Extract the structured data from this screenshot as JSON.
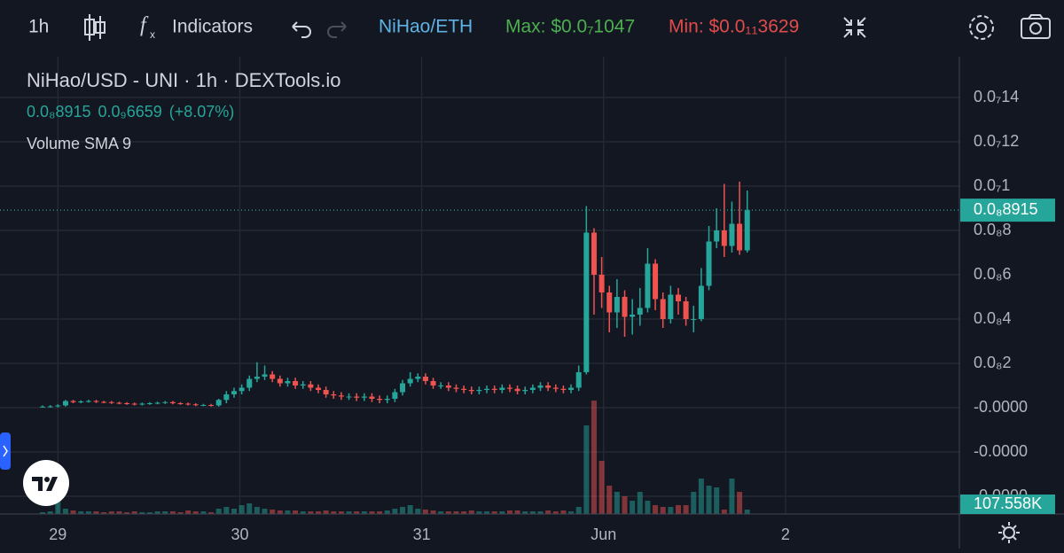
{
  "toolbar": {
    "interval": "1h",
    "indicators": "Indicators",
    "pair": "NiHao/ETH",
    "max": "Max: $0.0₇1047",
    "min": "Min: $0.0₁₁3629"
  },
  "chart_data": {
    "type": "candlestick",
    "title": "NiHao/USD - UNI · 1h · DEXTools.io",
    "legend_values": [
      "0.0₈8915",
      "0.0₉6659",
      "(+8.07%)"
    ],
    "indicator": "Volume SMA 9",
    "up_color": "#26a69a",
    "down_color": "#ef5350",
    "grid": true,
    "open": [
      5e-11,
      5e-11,
      6e-11,
      1e-10,
      3e-10,
      2.5e-10,
      2.8e-10,
      3e-10,
      2.6e-10,
      2.5e-10,
      2.2e-10,
      2e-10,
      1.8e-10,
      1.5e-10,
      1.8e-10,
      2e-10,
      2.2e-10,
      2.5e-10,
      2e-10,
      1.8e-10,
      1.5e-10,
      1.2e-10,
      1.2e-10,
      1e-10,
      3.5e-10,
      6e-10,
      7.5e-10,
      9e-10,
      1.3e-09,
      1.4e-09,
      1.5e-09,
      1.3e-09,
      1.1e-09,
      1.2e-09,
      1e-09,
      1.05e-09,
      9e-10,
      8e-10,
      6e-10,
      5.5e-10,
      5e-10,
      5e-10,
      4.5e-10,
      5e-10,
      4e-10,
      3.5e-10,
      4e-10,
      7e-10,
      1.1e-09,
      1.3e-09,
      1.4e-09,
      1.2e-09,
      1e-09,
      1e-09,
      9e-10,
      8.5e-10,
      8e-10,
      7.5e-10,
      8e-10,
      8.5e-10,
      8e-10,
      9e-10,
      8.5e-10,
      7.5e-10,
      8e-10,
      9e-10,
      1e-09,
      9e-10,
      8.5e-10,
      8e-10,
      9e-10,
      1.6e-09,
      7.9e-09,
      6e-09,
      5.2e-09,
      4.3e-09,
      5e-09,
      4.1e-09,
      4.2e-09,
      4.5e-09,
      6.5e-09,
      4.9e-09,
      4e-09,
      5.1e-09,
      4.8e-09,
      4e-09,
      4e-09,
      5.5e-09,
      7.5e-09,
      8e-09,
      7.3e-09,
      8.3e-09,
      7.1e-09
    ],
    "high": [
      1e-10,
      1.1e-10,
      1.5e-10,
      3.5e-10,
      3.5e-10,
      3.3e-10,
      3.5e-10,
      3.5e-10,
      3.1e-10,
      3e-10,
      2.7e-10,
      2.5e-10,
      2.3e-10,
      2.3e-10,
      2.5e-10,
      2.7e-10,
      3e-10,
      3e-10,
      2.5e-10,
      2.3e-10,
      2e-10,
      1.7e-10,
      1.7e-10,
      4e-10,
      7.5e-10,
      9e-10,
      1.05e-09,
      1.45e-09,
      2.05e-09,
      1.9e-09,
      1.65e-09,
      1.45e-09,
      1.35e-09,
      1.35e-09,
      1.2e-09,
      1.2e-09,
      1.05e-09,
      9.5e-10,
      7.5e-10,
      7e-10,
      6.5e-10,
      6.5e-10,
      6.5e-10,
      6.5e-10,
      5.5e-10,
      5.5e-10,
      8.5e-10,
      1.25e-09,
      1.6e-09,
      1.55e-09,
      1.55e-09,
      1.35e-09,
      1.15e-09,
      1.15e-09,
      1.05e-09,
      1e-09,
      9.5e-10,
      9.5e-10,
      1e-09,
      1e-09,
      1.05e-09,
      1.05e-09,
      1e-09,
      9.5e-10,
      1.05e-09,
      1.15e-09,
      1.15e-09,
      1.05e-09,
      1e-09,
      1.05e-09,
      1.9e-09,
      9.1e-09,
      8.1e-09,
      6.8e-09,
      5.5e-09,
      5.8e-09,
      5.3e-09,
      4.9e-09,
      5.4e-09,
      7.2e-09,
      6.7e-09,
      5.2e-09,
      5.5e-09,
      5.4e-09,
      5e-09,
      4.6e-09,
      6.3e-09,
      8.2e-09,
      9e-09,
      1.01e-08,
      9.3e-09,
      1.02e-08,
      9.8e-09
    ],
    "low": [
      0,
      0,
      1e-11,
      5e-11,
      2e-10,
      2e-10,
      2.3e-10,
      2.1e-10,
      2e-10,
      1.7e-10,
      1.5e-10,
      1.3e-10,
      1e-10,
      1e-10,
      1.3e-10,
      1.5e-10,
      1.7e-10,
      1.5e-10,
      1.3e-10,
      1e-10,
      7e-11,
      7e-11,
      5e-11,
      5e-11,
      2e-10,
      4.5e-10,
      6e-10,
      7.5e-10,
      1.15e-09,
      1.25e-09,
      1.15e-09,
      9.5e-10,
      9.5e-10,
      8.5e-10,
      8.5e-10,
      7.5e-10,
      6.5e-10,
      4.5e-10,
      4e-10,
      3.5e-10,
      3.5e-10,
      3e-10,
      3e-10,
      2.5e-10,
      2e-10,
      2e-10,
      2.5e-10,
      5.5e-10,
      9.5e-10,
      1.15e-09,
      1.05e-09,
      8.5e-10,
      8.5e-10,
      7.5e-10,
      7e-10,
      6.5e-10,
      6e-10,
      6e-10,
      6.5e-10,
      6.5e-10,
      6.5e-10,
      7e-10,
      6e-10,
      6e-10,
      6.5e-10,
      7.5e-10,
      7.5e-10,
      7e-10,
      6.5e-10,
      6.5e-10,
      7.5e-10,
      1.5e-09,
      4.2e-09,
      4.5e-09,
      3.4e-09,
      3.6e-09,
      3.2e-09,
      3.3e-09,
      3.7e-09,
      4.3e-09,
      4.4e-09,
      3.6e-09,
      3.8e-09,
      4.2e-09,
      3.7e-09,
      3.4e-09,
      3.9e-09,
      5.3e-09,
      7.2e-09,
      6.8e-09,
      7e-09,
      6.9e-09,
      7e-09
    ],
    "close": [
      5e-11,
      6e-11,
      1e-10,
      3e-10,
      2.5e-10,
      2.8e-10,
      3e-10,
      2.6e-10,
      2.5e-10,
      2.2e-10,
      2e-10,
      1.8e-10,
      1.5e-10,
      1.8e-10,
      2e-10,
      2.2e-10,
      2.5e-10,
      2e-10,
      1.8e-10,
      1.5e-10,
      1.2e-10,
      1.2e-10,
      1e-10,
      3.5e-10,
      6e-10,
      7.5e-10,
      9e-10,
      1.3e-09,
      1.4e-09,
      1.5e-09,
      1.3e-09,
      1.1e-09,
      1.2e-09,
      1e-09,
      1.05e-09,
      9e-10,
      8e-10,
      6e-10,
      5.5e-10,
      5e-10,
      5e-10,
      4.5e-10,
      5e-10,
      4e-10,
      3.5e-10,
      4e-10,
      7e-10,
      1.1e-09,
      1.3e-09,
      1.4e-09,
      1.2e-09,
      1e-09,
      1e-09,
      9e-10,
      8.5e-10,
      8e-10,
      7.5e-10,
      8e-10,
      8.5e-10,
      8e-10,
      9e-10,
      8.5e-10,
      7.5e-10,
      8e-10,
      9e-10,
      1e-09,
      9e-10,
      8.5e-10,
      8e-10,
      9e-10,
      1.6e-09,
      7.9e-09,
      6e-09,
      5.2e-09,
      4.3e-09,
      5e-09,
      4.1e-09,
      4.2e-09,
      4.5e-09,
      6.5e-09,
      4.9e-09,
      4e-09,
      5.1e-09,
      4.8e-09,
      4e-09,
      4e-09,
      5.5e-09,
      7.5e-09,
      8e-09,
      7.3e-09,
      8.3e-09,
      7.1e-09,
      8.915e-09
    ],
    "volume": [
      43000,
      64500,
      645000,
      129000,
      86000,
      64500,
      64500,
      64500,
      43000,
      64500,
      64500,
      43000,
      64500,
      43000,
      43000,
      64500,
      64500,
      64500,
      43000,
      86000,
      64500,
      64500,
      43000,
      129000,
      172000,
      129000,
      215000,
      258000,
      172000,
      129000,
      107500,
      86000,
      86000,
      86000,
      64500,
      64500,
      64500,
      86000,
      64500,
      64500,
      64500,
      64500,
      64500,
      64500,
      64500,
      86000,
      129000,
      172000,
      215000,
      129000,
      107500,
      86000,
      64500,
      64500,
      64500,
      64500,
      86000,
      64500,
      64500,
      64500,
      64500,
      86000,
      86000,
      64500,
      64500,
      64500,
      86000,
      64500,
      86000,
      64500,
      172000,
      2150000,
      2752000,
      1290000,
      688000,
      537500,
      430000,
      322500,
      537500,
      322500,
      215000,
      172000,
      172000,
      215000,
      215000,
      537500,
      860000,
      688000,
      645000,
      107500,
      860000,
      537500,
      107558
    ],
    "last_price_label": "0.0₈8915",
    "last_volume_label": "107.558K",
    "ylim": [
      -4.8e-09,
      1.584e-08
    ],
    "yticks": [
      {
        "value": 1.4e-08,
        "label": "0.0₇14"
      },
      {
        "value": 1.2e-08,
        "label": "0.0₇12"
      },
      {
        "value": 1e-08,
        "label": "0.0₇1"
      },
      {
        "value": 8e-09,
        "label": "0.0₈8"
      },
      {
        "value": 6e-09,
        "label": "0.0₈6"
      },
      {
        "value": 4e-09,
        "label": "0.0₈4"
      },
      {
        "value": 2e-09,
        "label": "0.0₈2"
      },
      {
        "value": 0,
        "label": "-0.0000"
      },
      {
        "value": -2e-09,
        "label": "-0.0000"
      },
      {
        "value": -4e-09,
        "label": "-0.0000"
      }
    ],
    "xlim": [
      -5.56,
      119.7
    ],
    "xticks": [
      {
        "value": 2,
        "label": "29"
      },
      {
        "value": 25.75,
        "label": "30"
      },
      {
        "value": 49.5,
        "label": "31"
      },
      {
        "value": 73.25,
        "label": "Jun"
      },
      {
        "value": 97,
        "label": "2"
      }
    ],
    "volume_ylim": [
      0,
      11100000
    ]
  }
}
